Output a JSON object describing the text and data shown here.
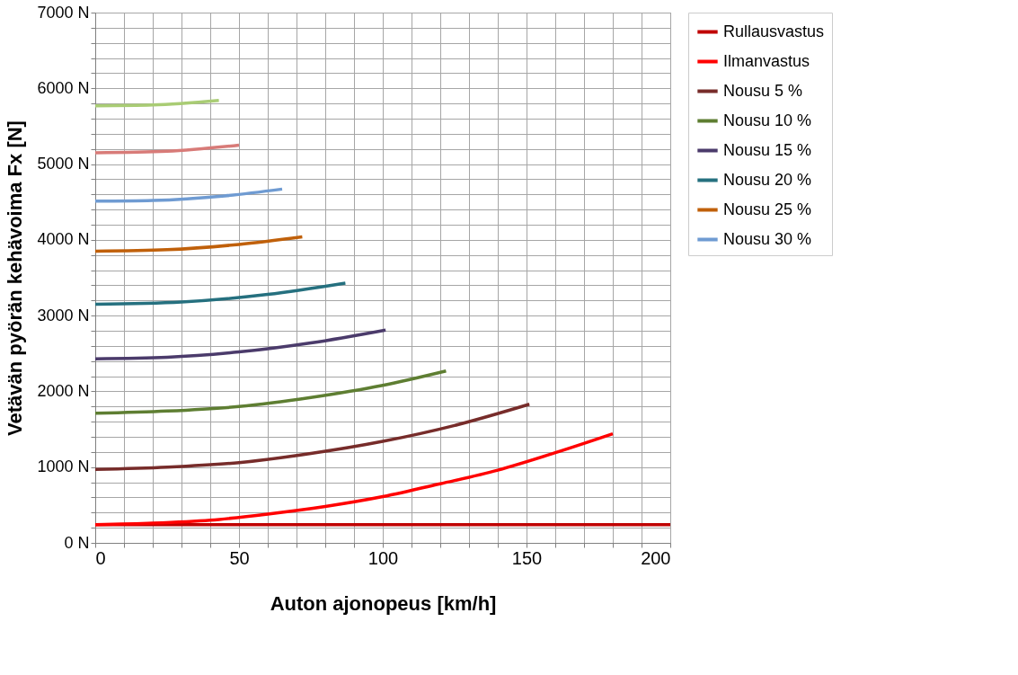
{
  "chart_data": {
    "type": "line",
    "xlabel": "Auton ajonopeus [km/h]",
    "ylabel": "Vetävän pyörän kehävoima Fx  [N]",
    "xlim": [
      0,
      200
    ],
    "ylim": [
      0,
      7000
    ],
    "xticks": [
      0,
      {
        "value": 10,
        "label": null
      },
      {
        "value": 20,
        "label": null
      },
      {
        "value": 30,
        "label": null
      },
      {
        "value": 40,
        "label": null
      },
      50,
      {
        "value": 60,
        "label": null
      },
      {
        "value": 70,
        "label": null
      },
      {
        "value": 80,
        "label": null
      },
      {
        "value": 90,
        "label": null
      },
      100,
      {
        "value": 110,
        "label": null
      },
      {
        "value": 120,
        "label": null
      },
      {
        "value": 130,
        "label": null
      },
      {
        "value": 140,
        "label": null
      },
      150,
      {
        "value": 160,
        "label": null
      },
      {
        "value": 170,
        "label": null
      },
      {
        "value": 180,
        "label": null
      },
      {
        "value": 190,
        "label": null
      },
      200
    ],
    "yticks": [
      {
        "value": 0,
        "label": "0 N"
      },
      {
        "value": 200,
        "label": null
      },
      {
        "value": 400,
        "label": null
      },
      {
        "value": 600,
        "label": null
      },
      {
        "value": 800,
        "label": null
      },
      {
        "value": 1000,
        "label": "1000 N"
      },
      {
        "value": 1200,
        "label": null
      },
      {
        "value": 1400,
        "label": null
      },
      {
        "value": 1600,
        "label": null
      },
      {
        "value": 1800,
        "label": null
      },
      {
        "value": 2000,
        "label": "2000 N"
      },
      {
        "value": 2200,
        "label": null
      },
      {
        "value": 2400,
        "label": null
      },
      {
        "value": 2600,
        "label": null
      },
      {
        "value": 2800,
        "label": null
      },
      {
        "value": 3000,
        "label": "3000 N"
      },
      {
        "value": 3200,
        "label": null
      },
      {
        "value": 3400,
        "label": null
      },
      {
        "value": 3600,
        "label": null
      },
      {
        "value": 3800,
        "label": null
      },
      {
        "value": 4000,
        "label": "4000 N"
      },
      {
        "value": 4200,
        "label": null
      },
      {
        "value": 4400,
        "label": null
      },
      {
        "value": 4600,
        "label": null
      },
      {
        "value": 4800,
        "label": null
      },
      {
        "value": 5000,
        "label": "5000 N"
      },
      {
        "value": 5200,
        "label": null
      },
      {
        "value": 5400,
        "label": null
      },
      {
        "value": 5600,
        "label": null
      },
      {
        "value": 5800,
        "label": null
      },
      {
        "value": 6000,
        "label": "6000 N"
      },
      {
        "value": 6200,
        "label": null
      },
      {
        "value": 6400,
        "label": null
      },
      {
        "value": 6600,
        "label": null
      },
      {
        "value": 6800,
        "label": null
      },
      {
        "value": 7000,
        "label": "7000 N"
      }
    ],
    "grid": true,
    "legend": "top right",
    "marker": "none",
    "line_style": "solid",
    "series": [
      {
        "name": "Rullausvastus",
        "color": "#c00000",
        "x": [
          0,
          200
        ],
        "values": [
          240,
          240
        ]
      },
      {
        "name": "Ilmanvastus",
        "color": "#ff0000",
        "x": [
          0,
          20,
          40,
          60,
          80,
          100,
          120,
          140,
          160,
          180
        ],
        "values": [
          240,
          260,
          300,
          380,
          480,
          610,
          780,
          960,
          1190,
          1440
        ]
      },
      {
        "name": "Nousu 5 %",
        "color": "#772c2a",
        "x": [
          0,
          25,
          50,
          75,
          100,
          125,
          151
        ],
        "values": [
          970,
          1000,
          1060,
          1180,
          1340,
          1550,
          1830
        ]
      },
      {
        "name": "Nousu 10 %",
        "color": "#5e7e32",
        "x": [
          0,
          25,
          50,
          75,
          100,
          122
        ],
        "values": [
          1710,
          1740,
          1800,
          1920,
          2080,
          2270
        ]
      },
      {
        "name": "Nousu 15 %",
        "color": "#4b3b6b",
        "x": [
          0,
          25,
          50,
          75,
          101
        ],
        "values": [
          2430,
          2450,
          2520,
          2640,
          2810
        ]
      },
      {
        "name": "Nousu 20 %",
        "color": "#25707f",
        "x": [
          0,
          30,
          60,
          87
        ],
        "values": [
          3150,
          3180,
          3280,
          3430
        ]
      },
      {
        "name": "Nousu 25 %",
        "color": "#c0600a",
        "x": [
          0,
          25,
          50,
          72
        ],
        "values": [
          3850,
          3870,
          3940,
          4040
        ]
      },
      {
        "name": "Nousu 30 %",
        "color": "#6f9bd2",
        "x": [
          0,
          20,
          45,
          65
        ],
        "values": [
          4510,
          4520,
          4580,
          4670
        ]
      },
      {
        "color": "#d87b78",
        "x": [
          0,
          25,
          50
        ],
        "values": [
          5150,
          5170,
          5250
        ]
      },
      {
        "color": "#a9cc74",
        "x": [
          0,
          20,
          43
        ],
        "values": [
          5770,
          5780,
          5840
        ]
      }
    ]
  }
}
